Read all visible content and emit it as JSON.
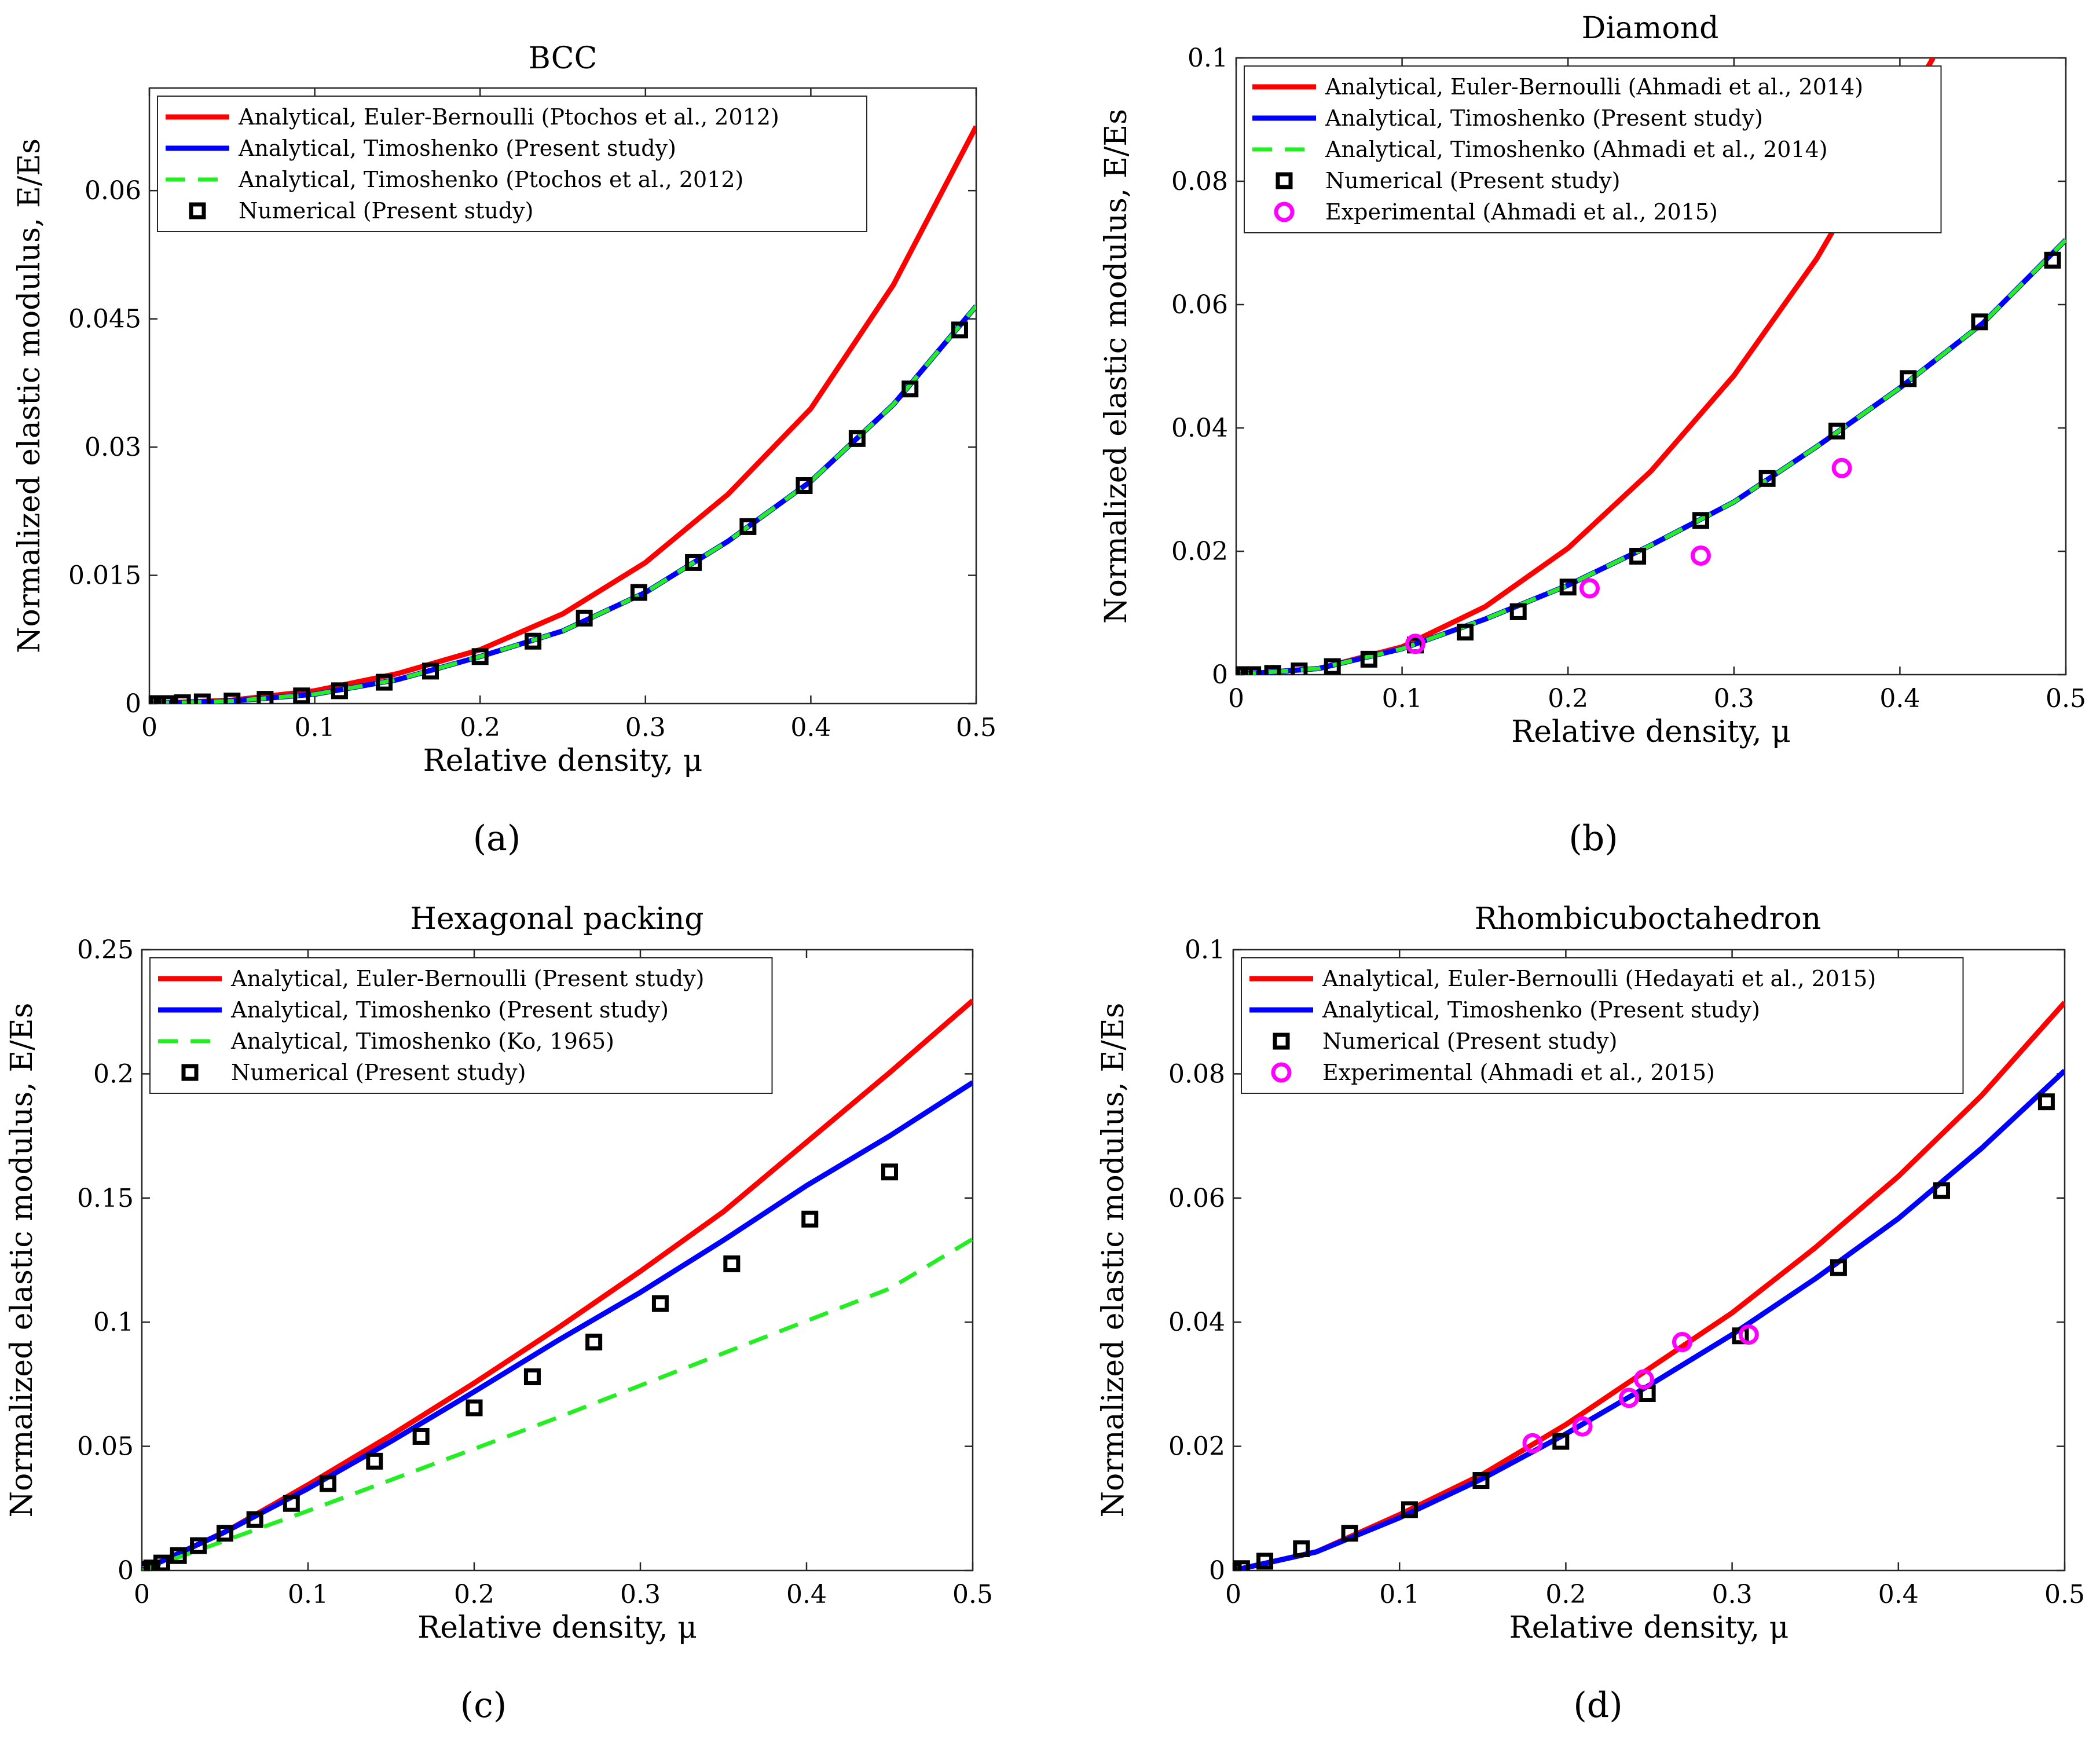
{
  "figure": {
    "panels": [
      {
        "label": "(a)"
      },
      {
        "label": "(b)"
      },
      {
        "label": "(c)"
      },
      {
        "label": "(d)"
      }
    ]
  },
  "colors": {
    "euler": "#ff0000",
    "timo": "#0000ff",
    "timo_ref": "#22ee22",
    "numerical": "#000000",
    "experimental": "#ff00ff"
  },
  "chart_data": [
    {
      "type": "line",
      "title": "BCC",
      "xlabel": "Relative density, μ",
      "ylabel": "Normalized elastic modulus, E/Es",
      "xlim": [
        0,
        0.5
      ],
      "ylim": [
        0,
        0.072
      ],
      "xticks": [
        0,
        0.1,
        0.2,
        0.3,
        0.4,
        0.5
      ],
      "xtick_labels": [
        "0",
        "0.1",
        "0.2",
        "0.3",
        "0.4",
        "0.5"
      ],
      "yticks": [
        0,
        0.015,
        0.03,
        0.045,
        0.06
      ],
      "ytick_labels": [
        "0",
        "0.015",
        "0.03",
        "0.045",
        "0.06"
      ],
      "legend_position": "top-left",
      "series": [
        {
          "name": "Analytical, Euler-Bernoulli (Ptochos et al., 2012)",
          "style": "euler",
          "x": [
            0,
            0.05,
            0.1,
            0.15,
            0.2,
            0.25,
            0.3,
            0.35,
            0.4,
            0.45,
            0.5
          ],
          "y": [
            0,
            0.0004,
            0.0015,
            0.0035,
            0.0063,
            0.0105,
            0.0165,
            0.0245,
            0.0345,
            0.049,
            0.0675
          ]
        },
        {
          "name": "Analytical, Timoshenko (Present study)",
          "style": "timo",
          "x": [
            0,
            0.05,
            0.1,
            0.15,
            0.2,
            0.25,
            0.3,
            0.35,
            0.4,
            0.45,
            0.5
          ],
          "y": [
            0,
            0.0003,
            0.0011,
            0.0028,
            0.0055,
            0.0085,
            0.013,
            0.019,
            0.026,
            0.035,
            0.0465
          ]
        },
        {
          "name": "Analytical, Timoshenko (Ptochos et al., 2012)",
          "style": "timo_ref",
          "x": [
            0,
            0.05,
            0.1,
            0.15,
            0.2,
            0.25,
            0.3,
            0.35,
            0.4,
            0.45,
            0.5
          ],
          "y": [
            0,
            0.0003,
            0.0011,
            0.0028,
            0.0055,
            0.0085,
            0.013,
            0.019,
            0.026,
            0.035,
            0.0465
          ]
        },
        {
          "name": "Numerical (Present study)",
          "style": "numerical",
          "x": [
            0,
            0.005,
            0.01,
            0.02,
            0.032,
            0.05,
            0.07,
            0.092,
            0.115,
            0.142,
            0.17,
            0.2,
            0.232,
            0.263,
            0.296,
            0.329,
            0.362,
            0.396,
            0.428,
            0.46,
            0.49
          ],
          "y": [
            0,
            0,
            0,
            0.0001,
            0.0002,
            0.0003,
            0.0005,
            0.0009,
            0.0015,
            0.0025,
            0.0038,
            0.0055,
            0.0073,
            0.01,
            0.013,
            0.0165,
            0.0207,
            0.0255,
            0.031,
            0.0368,
            0.0437
          ]
        }
      ]
    },
    {
      "type": "line",
      "title": "Diamond",
      "xlabel": "Relative density, μ",
      "ylabel": "Normalized elastic modulus, E/Es",
      "xlim": [
        0,
        0.5
      ],
      "ylim": [
        0,
        0.1
      ],
      "xticks": [
        0,
        0.1,
        0.2,
        0.3,
        0.4,
        0.5
      ],
      "xtick_labels": [
        "0",
        "0.1",
        "0.2",
        "0.3",
        "0.4",
        "0.5"
      ],
      "yticks": [
        0,
        0.02,
        0.04,
        0.06,
        0.08,
        0.1
      ],
      "ytick_labels": [
        "0",
        "0.02",
        "0.04",
        "0.06",
        "0.08",
        "0.1"
      ],
      "legend_position": "top-left",
      "series": [
        {
          "name": "Analytical, Euler-Bernoulli (Ahmadi et al., 2014)",
          "style": "euler",
          "x": [
            0,
            0.05,
            0.1,
            0.15,
            0.2,
            0.25,
            0.3,
            0.35,
            0.4,
            0.42
          ],
          "y": [
            0,
            0.001,
            0.0045,
            0.011,
            0.0205,
            0.033,
            0.0485,
            0.0675,
            0.0905,
            0.1
          ]
        },
        {
          "name": "Analytical, Timoshenko (Present study)",
          "style": "timo",
          "x": [
            0,
            0.05,
            0.1,
            0.15,
            0.2,
            0.25,
            0.3,
            0.35,
            0.4,
            0.45,
            0.5
          ],
          "y": [
            0,
            0.001,
            0.0042,
            0.009,
            0.0145,
            0.021,
            0.028,
            0.037,
            0.0465,
            0.057,
            0.0705
          ]
        },
        {
          "name": "Analytical, Timoshenko (Ahmadi et al., 2014)",
          "style": "timo_ref",
          "x": [
            0,
            0.05,
            0.1,
            0.15,
            0.2,
            0.25,
            0.3,
            0.35,
            0.4,
            0.45,
            0.5
          ],
          "y": [
            0,
            0.001,
            0.0042,
            0.009,
            0.0145,
            0.021,
            0.028,
            0.037,
            0.0465,
            0.057,
            0.0705
          ]
        },
        {
          "name": "Numerical (Present study)",
          "style": "numerical",
          "x": [
            0,
            0.005,
            0.01,
            0.022,
            0.038,
            0.058,
            0.08,
            0.108,
            0.138,
            0.17,
            0.2,
            0.242,
            0.28,
            0.32,
            0.362,
            0.405,
            0.448,
            0.492
          ],
          "y": [
            0,
            0,
            0,
            0.0002,
            0.0006,
            0.0013,
            0.0025,
            0.0048,
            0.0069,
            0.0102,
            0.0142,
            0.0192,
            0.025,
            0.0318,
            0.0395,
            0.048,
            0.0572,
            0.0672
          ]
        },
        {
          "name": "Experimental (Ahmadi et al., 2015)",
          "style": "experimental",
          "x": [
            0.108,
            0.213,
            0.28,
            0.365
          ],
          "y": [
            0.005,
            0.014,
            0.0193,
            0.0335
          ]
        }
      ]
    },
    {
      "type": "line",
      "title": "Hexagonal packing",
      "xlabel": "Relative density, μ",
      "ylabel": "Normalized elastic modulus, E/Es",
      "xlim": [
        0,
        0.5
      ],
      "ylim": [
        0,
        0.25
      ],
      "xticks": [
        0,
        0.1,
        0.2,
        0.3,
        0.4,
        0.5
      ],
      "xtick_labels": [
        "0",
        "0.1",
        "0.2",
        "0.3",
        "0.4",
        "0.5"
      ],
      "yticks": [
        0,
        0.05,
        0.1,
        0.15,
        0.2,
        0.25
      ],
      "ytick_labels": [
        "0",
        "0.05",
        "0.1",
        "0.15",
        "0.2",
        "0.25"
      ],
      "legend_position": "top-left",
      "series": [
        {
          "name": "Analytical, Euler-Bernoulli (Present study)",
          "style": "euler",
          "x": [
            0,
            0.05,
            0.1,
            0.15,
            0.2,
            0.25,
            0.3,
            0.35,
            0.4,
            0.45,
            0.5
          ],
          "y": [
            0,
            0.0155,
            0.0345,
            0.0545,
            0.0755,
            0.0975,
            0.1205,
            0.1445,
            0.1725,
            0.2005,
            0.2295
          ]
        },
        {
          "name": "Analytical, Timoshenko (Present study)",
          "style": "timo",
          "x": [
            0,
            0.05,
            0.1,
            0.15,
            0.2,
            0.25,
            0.3,
            0.35,
            0.4,
            0.45,
            0.5
          ],
          "y": [
            0,
            0.0155,
            0.033,
            0.052,
            0.072,
            0.0925,
            0.112,
            0.133,
            0.155,
            0.175,
            0.1965
          ]
        },
        {
          "name": "Analytical, Timoshenko (Ko, 1965)",
          "style": "timo_ref",
          "x": [
            0,
            0.05,
            0.1,
            0.15,
            0.2,
            0.25,
            0.3,
            0.35,
            0.4,
            0.45,
            0.5
          ],
          "y": [
            0,
            0.012,
            0.024,
            0.0365,
            0.049,
            0.0615,
            0.0745,
            0.0875,
            0.1005,
            0.1135,
            0.1335
          ]
        },
        {
          "name": "Numerical (Present study)",
          "style": "numerical",
          "x": [
            0,
            0.003,
            0.006,
            0.012,
            0.022,
            0.034,
            0.05,
            0.068,
            0.09,
            0.112,
            0.14,
            0.168,
            0.2,
            0.235,
            0.272,
            0.312,
            0.355,
            0.402,
            0.45
          ],
          "y": [
            0,
            0.0005,
            0.001,
            0.003,
            0.006,
            0.01,
            0.015,
            0.0205,
            0.027,
            0.035,
            0.044,
            0.054,
            0.0655,
            0.078,
            0.092,
            0.1075,
            0.1235,
            0.1415,
            0.1605
          ]
        }
      ]
    },
    {
      "type": "line",
      "title": "Rhombicuboctahedron",
      "xlabel": "Relative density, μ",
      "ylabel": "Normalized elastic modulus, E/Es",
      "xlim": [
        0,
        0.5
      ],
      "ylim": [
        0,
        0.1
      ],
      "xticks": [
        0,
        0.1,
        0.2,
        0.3,
        0.4,
        0.5
      ],
      "xtick_labels": [
        "0",
        "0.1",
        "0.2",
        "0.3",
        "0.4",
        "0.5"
      ],
      "yticks": [
        0,
        0.02,
        0.04,
        0.06,
        0.08,
        0.1
      ],
      "ytick_labels": [
        "0",
        "0.02",
        "0.04",
        "0.06",
        "0.08",
        "0.1"
      ],
      "legend_position": "top-left",
      "series": [
        {
          "name": "Analytical, Euler-Bernoulli (Hedayati et al., 2015)",
          "style": "euler",
          "x": [
            0,
            0.05,
            0.1,
            0.15,
            0.2,
            0.25,
            0.3,
            0.35,
            0.4,
            0.45,
            0.5
          ],
          "y": [
            0,
            0.003,
            0.009,
            0.0155,
            0.0235,
            0.0325,
            0.0415,
            0.052,
            0.0635,
            0.0765,
            0.0915
          ]
        },
        {
          "name": "Analytical, Timoshenko (Present study)",
          "style": "timo",
          "x": [
            0,
            0.05,
            0.1,
            0.15,
            0.2,
            0.25,
            0.3,
            0.35,
            0.4,
            0.45,
            0.5
          ],
          "y": [
            0,
            0.003,
            0.0085,
            0.0148,
            0.022,
            0.0298,
            0.038,
            0.047,
            0.0567,
            0.068,
            0.0805
          ]
        },
        {
          "name": "Numerical (Present study)",
          "style": "numerical",
          "x": [
            0,
            0.005,
            0.019,
            0.041,
            0.07,
            0.106,
            0.149,
            0.197,
            0.249,
            0.305,
            0.364,
            0.426,
            0.489
          ],
          "y": [
            0,
            0.0003,
            0.0015,
            0.0035,
            0.006,
            0.0098,
            0.0145,
            0.0208,
            0.0285,
            0.0378,
            0.0488,
            0.0612,
            0.0755
          ]
        },
        {
          "name": "Experimental (Ahmadi et al., 2015)",
          "style": "experimental",
          "x": [
            0.18,
            0.21,
            0.238,
            0.247,
            0.27,
            0.31
          ],
          "y": [
            0.0205,
            0.0232,
            0.0278,
            0.0308,
            0.0368,
            0.038
          ]
        }
      ]
    }
  ]
}
